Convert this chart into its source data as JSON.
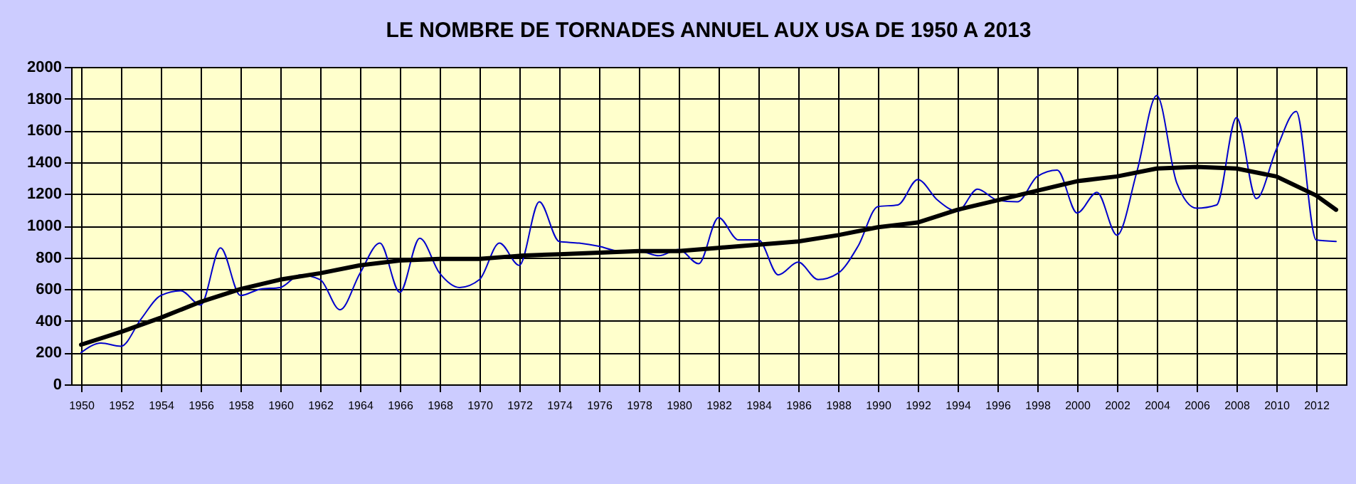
{
  "chart_data": {
    "type": "line",
    "title": "LE NOMBRE DE TORNADES ANNUEL AUX USA DE 1950 A 2013",
    "x": [
      1950,
      1951,
      1952,
      1953,
      1954,
      1955,
      1956,
      1957,
      1958,
      1959,
      1960,
      1961,
      1962,
      1963,
      1964,
      1965,
      1966,
      1967,
      1968,
      1969,
      1970,
      1971,
      1972,
      1973,
      1974,
      1975,
      1976,
      1977,
      1978,
      1979,
      1980,
      1981,
      1982,
      1983,
      1984,
      1985,
      1986,
      1987,
      1988,
      1989,
      1990,
      1991,
      1992,
      1993,
      1994,
      1995,
      1996,
      1997,
      1998,
      1999,
      2000,
      2001,
      2002,
      2003,
      2004,
      2005,
      2006,
      2007,
      2008,
      2009,
      2010,
      2011,
      2012,
      2013
    ],
    "series": [
      {
        "color": "#0000cc",
        "line_style": "solid",
        "values": [
          200,
          260,
          240,
          410,
          560,
          590,
          500,
          860,
          560,
          600,
          610,
          690,
          660,
          470,
          700,
          890,
          580,
          920,
          700,
          610,
          660,
          890,
          750,
          1150,
          900,
          890,
          870,
          840,
          840,
          810,
          850,
          760,
          1050,
          910,
          910,
          690,
          770,
          660,
          700,
          870,
          1120,
          1130,
          1290,
          1160,
          1090,
          1230,
          1160,
          1150,
          1310,
          1350,
          1080,
          1210,
          940,
          1340,
          1820,
          1270,
          1110,
          1130,
          1680,
          1170,
          1480,
          1720,
          910,
          900
        ]
      },
      {
        "color": "#000000",
        "line_style": "solid",
        "x": [
          1950,
          1952,
          1954,
          1956,
          1958,
          1960,
          1962,
          1964,
          1966,
          1968,
          1970,
          1972,
          1974,
          1976,
          1978,
          1980,
          1982,
          1984,
          1986,
          1988,
          1990,
          1992,
          1994,
          1996,
          1998,
          2000,
          2002,
          2004,
          2006,
          2008,
          2010,
          2012,
          2013
        ],
        "values": [
          250,
          330,
          420,
          520,
          600,
          660,
          700,
          750,
          780,
          790,
          790,
          810,
          820,
          830,
          840,
          840,
          860,
          880,
          900,
          940,
          990,
          1020,
          1100,
          1160,
          1220,
          1280,
          1310,
          1360,
          1370,
          1360,
          1310,
          1190,
          1100
        ]
      }
    ],
    "xlim": [
      1949.5,
      2013.5
    ],
    "xticks": [
      1950,
      1952,
      1954,
      1956,
      1958,
      1960,
      1962,
      1964,
      1966,
      1968,
      1970,
      1972,
      1974,
      1976,
      1978,
      1980,
      1982,
      1984,
      1986,
      1988,
      1990,
      1992,
      1994,
      1996,
      1998,
      2000,
      2002,
      2004,
      2006,
      2008,
      2010,
      2012
    ],
    "ylim": [
      0,
      2000
    ],
    "yticks": [
      0,
      200,
      400,
      600,
      800,
      1000,
      1200,
      1400,
      1600,
      1800,
      2000
    ],
    "grid": true,
    "marker": "none"
  }
}
